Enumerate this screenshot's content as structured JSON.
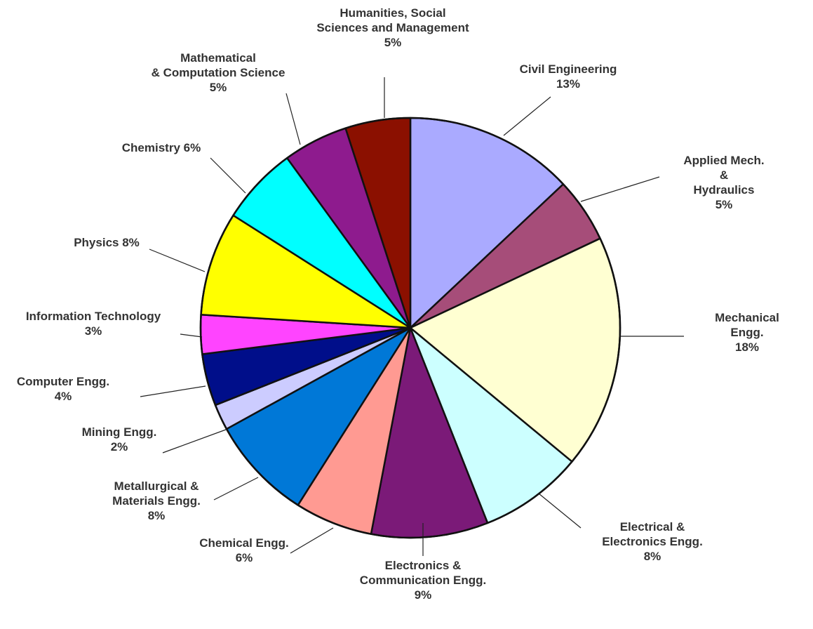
{
  "chart_data": {
    "type": "pie",
    "categories": [
      "Civil Engineering",
      "Applied Mech. &\nHydraulics",
      "Mechanical Engg.",
      "Electrical &\nElectronics Engg.",
      "Electronics &\nCommunication Engg.",
      "Chemical Engg.",
      "Metallurgical &\nMaterials Engg.",
      "Mining Engg.",
      "Computer Engg.",
      "Information Technology",
      "Physics",
      "Chemistry",
      "Mathematical\n& Computation Science",
      "Humanities, Social\nSciences and Management"
    ],
    "values": [
      13,
      5,
      18,
      8,
      9,
      6,
      8,
      2,
      4,
      3,
      8,
      6,
      5,
      5
    ],
    "value_labels": [
      "13%",
      "5%",
      "18%",
      "8%",
      "9%",
      "6%",
      "8%",
      "2%",
      "4%",
      "3%",
      "8%",
      "6%",
      "5%",
      "5%"
    ],
    "colors": [
      "#aaaaff",
      "#a64d79",
      "#ffffd2",
      "#ccffff",
      "#7b1a78",
      "#ff9a92",
      "#0078d7",
      "#ccccff",
      "#000e8a",
      "#ff44ff",
      "#ffff00",
      "#00ffff",
      "#8e1b8e",
      "#8b1000"
    ]
  }
}
